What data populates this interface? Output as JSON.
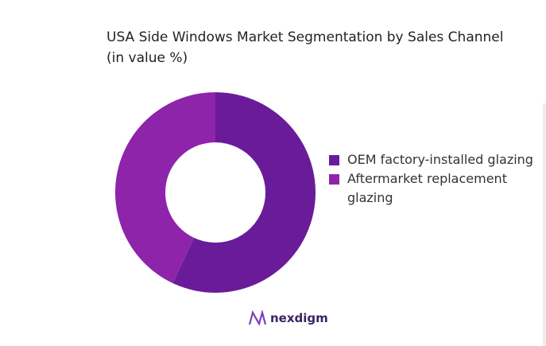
{
  "chart_data": {
    "type": "donut",
    "title": "USA Side Windows Market Segmentation by Sales Channel (in value %)",
    "categories": [
      "OEM factory-installed glazing",
      "Aftermarket replacement glazing"
    ],
    "values": [
      57,
      43
    ],
    "colors": [
      "#6a1b9a",
      "#8e24aa"
    ],
    "legend": "right"
  },
  "brand": "nexdigm"
}
